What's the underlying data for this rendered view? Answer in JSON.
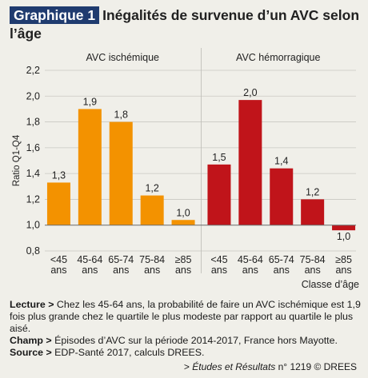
{
  "header": {
    "tag": "Graphique 1",
    "title": "Inégalités de survenue d’un AVC selon l’âge"
  },
  "chart_data": {
    "type": "bar",
    "ylabel": "Ratio Q1-Q4",
    "xlabel": "Classe d’âge",
    "ylim": [
      0.8,
      2.2
    ],
    "yticks": [
      "0,8",
      "1,0",
      "1,2",
      "1,4",
      "1,6",
      "1,8",
      "2,0",
      "2,2"
    ],
    "ytick_values": [
      0.8,
      1.0,
      1.2,
      1.4,
      1.6,
      1.8,
      2.0,
      2.2
    ],
    "baseline": 1.0,
    "grid": true,
    "categories": [
      "<45 ans",
      "45-64 ans",
      "65-74 ans",
      "75-84 ans",
      "≥85 ans"
    ],
    "series": [
      {
        "name": "AVC ischémique",
        "color": "#f39200",
        "values": [
          1.33,
          1.9,
          1.8,
          1.23,
          1.04
        ],
        "labels": [
          "1,3",
          "1,9",
          "1,8",
          "1,2",
          "1,0"
        ]
      },
      {
        "name": "AVC hémorragique",
        "color": "#c0141a",
        "values": [
          1.47,
          1.97,
          1.44,
          1.2,
          0.96
        ],
        "labels": [
          "1,5",
          "2,0",
          "1,4",
          "1,2",
          "1,0"
        ]
      }
    ]
  },
  "notes": {
    "lecture_label": "Lecture >",
    "lecture_text": "Chez les 45-64 ans, la probabilité de faire un AVC ischémique est 1,9 fois plus grande chez le quartile le plus modeste par rapport au quartile le plus aisé.",
    "champ_label": "Champ >",
    "champ_text": "Épisodes d’AVC sur la période 2014-2017, France hors Mayotte.",
    "source_label": "Source >",
    "source_text": "EDP-Santé 2017, calculs DREES."
  },
  "footer": {
    "prefix": "> ",
    "publication": "Études et Résultats",
    "suffix": " n° 1219 © DREES"
  }
}
